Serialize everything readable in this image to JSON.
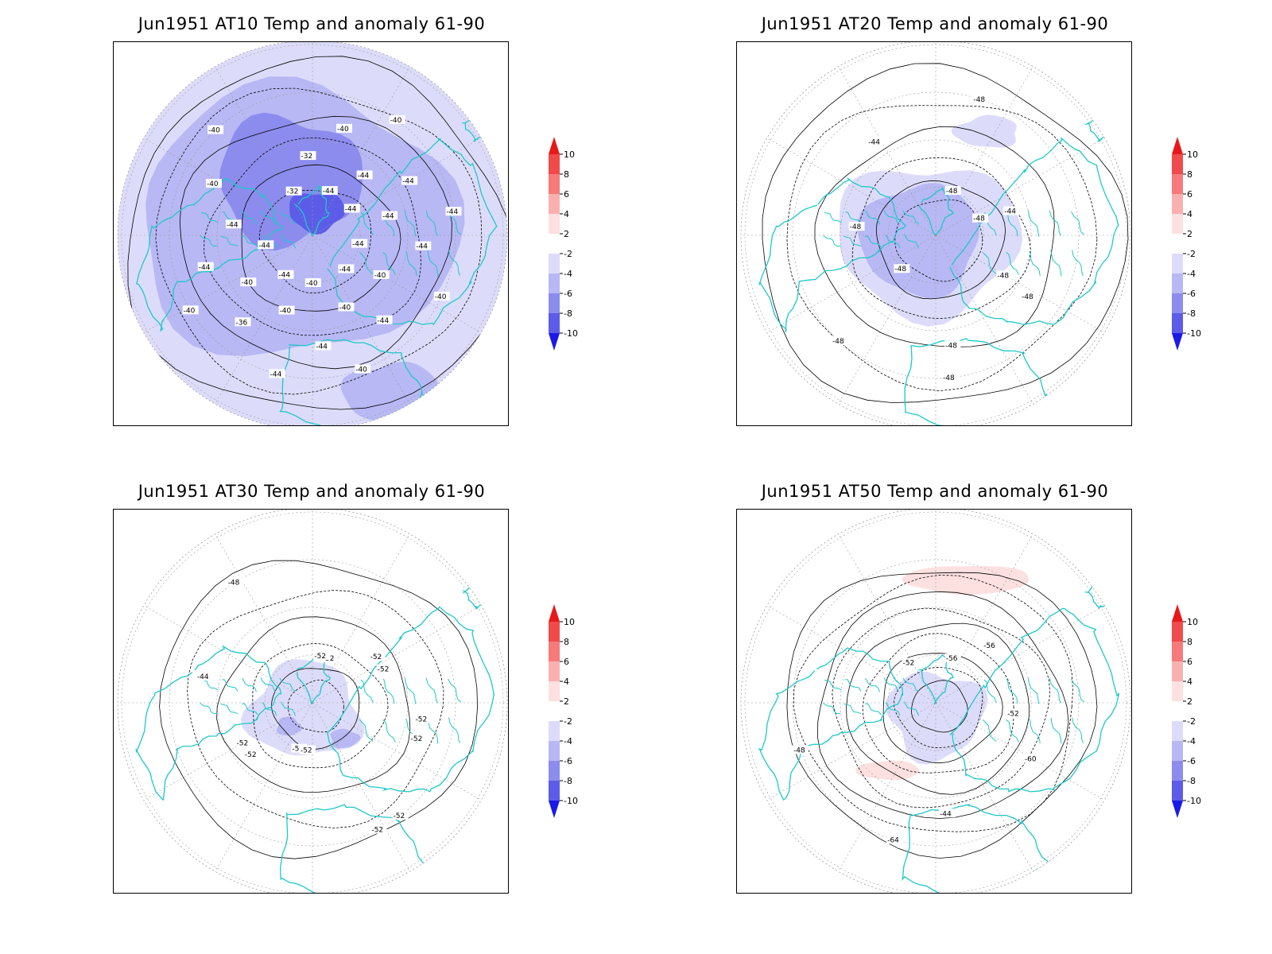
{
  "panels": [
    {
      "title": "Jun1951 AT10 Temp and anomaly 61-90",
      "anomaly_fill": "strong-negative",
      "contour_labels": [
        "-44",
        "-44",
        "-44",
        "-44",
        "-44",
        "-40",
        "-44",
        "-40",
        "-40",
        "-40",
        "-36",
        "-40",
        "-44",
        "-44",
        "-40",
        "-40",
        "-32",
        "-32",
        "-40",
        "-40",
        "-44",
        "-44",
        "-44",
        "-40",
        "-44",
        "-40",
        "-44",
        "-44",
        "-44",
        "-40",
        "-44"
      ]
    },
    {
      "title": "Jun1951 AT20 Temp and anomaly 61-90",
      "anomaly_fill": "moderate-negative",
      "contour_labels": [
        "-48",
        "-44",
        "-48",
        "-48",
        "-48",
        "-48",
        "-44",
        "-48",
        "-48",
        "-48",
        "-48",
        "-48"
      ]
    },
    {
      "title": "Jun1951 AT30 Temp and anomaly 61-90",
      "anomaly_fill": "weak-negative",
      "contour_labels": [
        "-52",
        "-52",
        "-52",
        "-52",
        "-52",
        "-52",
        "-44",
        "-48",
        "-52",
        "-52",
        "-52",
        "-52",
        "-52",
        "-52"
      ]
    },
    {
      "title": "Jun1951 AT50 Temp and anomaly 61-90",
      "anomaly_fill": "mixed",
      "contour_labels": [
        "-56",
        "-52",
        "-44",
        "-48",
        "-52",
        "-56",
        "-60",
        "-64"
      ]
    }
  ],
  "colorbar": {
    "ticks": [
      "10",
      "8",
      "6",
      "4",
      "2",
      "-2",
      "-4",
      "-6",
      "-8",
      "-10"
    ],
    "colors": [
      "#e81818",
      "#f04a4a",
      "#f77a7a",
      "#fbb0b0",
      "#fde0e0",
      "#ffffff",
      "#dcdcfa",
      "#b8b8f4",
      "#8c8cee",
      "#5c5ce8",
      "#1a1ae8"
    ]
  },
  "colors": {
    "coastline": "#1ec8c8",
    "contour": "#000000",
    "grid": "#999999"
  }
}
